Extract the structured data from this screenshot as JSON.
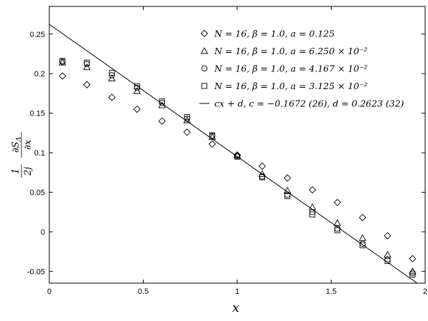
{
  "chart_data": {
    "type": "scatter",
    "xlabel": "x",
    "ylabel": {
      "prefix_num": "1",
      "prefix_den": "2j",
      "frac_num": "∂S",
      "frac_num_sub": "Λ",
      "frac_den": "∂x"
    },
    "xlim": [
      0,
      2
    ],
    "ylim": [
      -0.065,
      0.285
    ],
    "x_ticks": [
      {
        "v": 0,
        "label": "0"
      },
      {
        "v": 0.5,
        "label": "0.5"
      },
      {
        "v": 1,
        "label": "1"
      },
      {
        "v": 1.5,
        "label": "1.5"
      },
      {
        "v": 2,
        "label": "2"
      }
    ],
    "y_ticks": [
      {
        "v": -0.05,
        "label": "-0.05"
      },
      {
        "v": 0,
        "label": "0"
      },
      {
        "v": 0.05,
        "label": "0.05"
      },
      {
        "v": 0.1,
        "label": "0.1"
      },
      {
        "v": 0.15,
        "label": "0.15"
      },
      {
        "v": 0.2,
        "label": "0.2"
      },
      {
        "v": 0.25,
        "label": "0.25"
      }
    ],
    "series": [
      {
        "name": "N = 16,  β = 1.0,  a = 0.125",
        "marker": "diamond",
        "points": [
          [
            0.07,
            0.197
          ],
          [
            0.2,
            0.186
          ],
          [
            0.333,
            0.17
          ],
          [
            0.467,
            0.155
          ],
          [
            0.6,
            0.14
          ],
          [
            0.733,
            0.126
          ],
          [
            0.867,
            0.111
          ],
          [
            1.0,
            0.097
          ],
          [
            1.133,
            0.083
          ],
          [
            1.267,
            0.068
          ],
          [
            1.4,
            0.053
          ],
          [
            1.533,
            0.037
          ],
          [
            1.667,
            0.018
          ],
          [
            1.8,
            -0.005
          ],
          [
            1.933,
            -0.034
          ]
        ]
      },
      {
        "name": "N = 16,  β = 1.0,  a = 6.250 × 10⁻²",
        "marker": "triangle",
        "points": [
          [
            0.07,
            0.214
          ],
          [
            0.2,
            0.208
          ],
          [
            0.333,
            0.194
          ],
          [
            0.467,
            0.178
          ],
          [
            0.6,
            0.16
          ],
          [
            0.733,
            0.141
          ],
          [
            0.867,
            0.12
          ],
          [
            1.0,
            0.097
          ],
          [
            1.133,
            0.073
          ],
          [
            1.267,
            0.052
          ],
          [
            1.4,
            0.031
          ],
          [
            1.533,
            0.011
          ],
          [
            1.667,
            -0.008
          ],
          [
            1.8,
            -0.029
          ],
          [
            1.933,
            -0.05
          ]
        ]
      },
      {
        "name": "N = 16,  β = 1.0,  a = 4.167 × 10⁻²",
        "marker": "circle",
        "points": [
          [
            0.07,
            0.215
          ],
          [
            0.2,
            0.212
          ],
          [
            0.333,
            0.198
          ],
          [
            0.467,
            0.182
          ],
          [
            0.6,
            0.163
          ],
          [
            0.733,
            0.143
          ],
          [
            0.867,
            0.121
          ],
          [
            1.0,
            0.096
          ],
          [
            1.133,
            0.07
          ],
          [
            1.267,
            0.047
          ],
          [
            1.4,
            0.025
          ],
          [
            1.533,
            0.004
          ],
          [
            1.667,
            -0.015
          ],
          [
            1.8,
            -0.035
          ],
          [
            1.933,
            -0.052
          ]
        ]
      },
      {
        "name": "N = 16,  β = 1.0,  a = 3.125 × 10⁻²",
        "marker": "square",
        "points": [
          [
            0.07,
            0.216
          ],
          [
            0.2,
            0.214
          ],
          [
            0.333,
            0.201
          ],
          [
            0.467,
            0.184
          ],
          [
            0.6,
            0.165
          ],
          [
            0.733,
            0.145
          ],
          [
            0.867,
            0.122
          ],
          [
            1.0,
            0.095
          ],
          [
            1.133,
            0.069
          ],
          [
            1.267,
            0.045
          ],
          [
            1.4,
            0.022
          ],
          [
            1.533,
            0.002
          ],
          [
            1.667,
            -0.017
          ],
          [
            1.8,
            -0.037
          ],
          [
            1.933,
            -0.054
          ]
        ]
      },
      {
        "name": "cx + d,  c = −0.1672 (26),  d = 0.2623 (32)",
        "marker": "line",
        "c": -0.1672,
        "d": 0.2623
      }
    ],
    "legend_position": "top-right",
    "grid": false
  }
}
